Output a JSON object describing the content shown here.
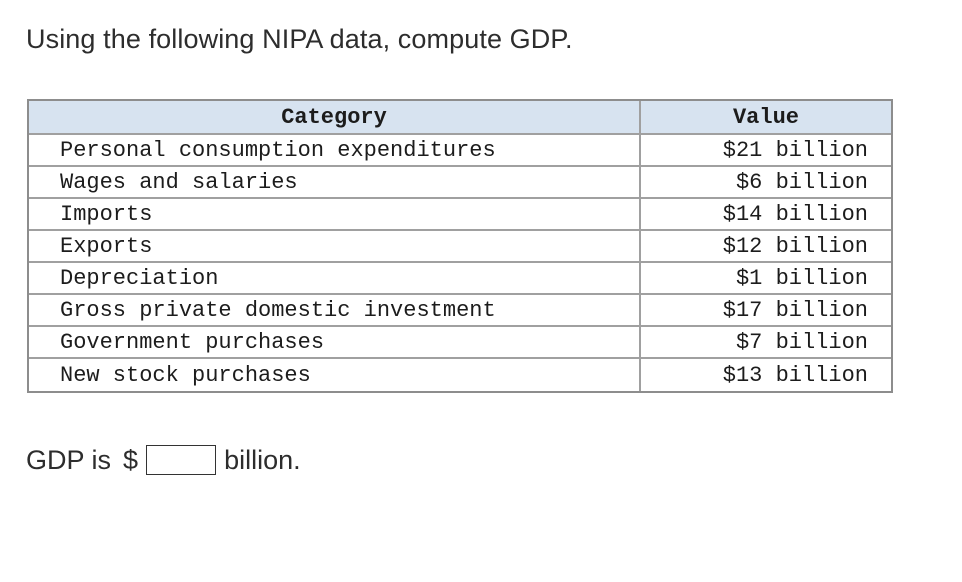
{
  "question": {
    "text": "Using the following NIPA data, compute GDP."
  },
  "table": {
    "headers": {
      "category": "Category",
      "value": "Value"
    },
    "rows": [
      {
        "category": "Personal consumption expenditures",
        "value": "$21 billion"
      },
      {
        "category": "Wages and salaries",
        "value": "$6 billion"
      },
      {
        "category": "Imports",
        "value": "$14 billion"
      },
      {
        "category": "Exports",
        "value": "$12 billion"
      },
      {
        "category": "Depreciation",
        "value": "$1 billion"
      },
      {
        "category": "Gross private domestic investment",
        "value": "$17 billion"
      },
      {
        "category": "Government purchases",
        "value": "$7 billion"
      },
      {
        "category": "New stock purchases",
        "value": "$13 billion"
      }
    ]
  },
  "answer": {
    "prefix": "GDP is",
    "currency": "$",
    "input_value": "",
    "suffix": "billion."
  }
}
